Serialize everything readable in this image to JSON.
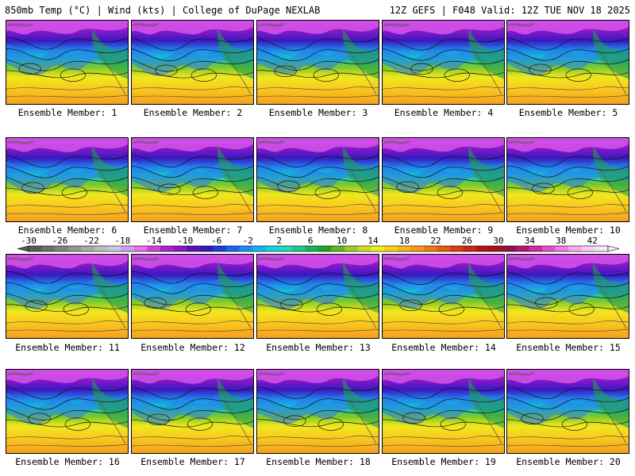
{
  "header": {
    "left": "850mb Temp (°C) | Wind (kts) | College of DuPage NEXLAB",
    "right": "12Z GEFS | F048 Valid: 12Z TUE NOV 18 2025"
  },
  "panel_label_prefix": "Ensemble Member: ",
  "members": [
    "1",
    "2",
    "3",
    "4",
    "5",
    "6",
    "7",
    "8",
    "9",
    "10",
    "11",
    "12",
    "13",
    "14",
    "15",
    "16",
    "17",
    "18",
    "19",
    "20"
  ],
  "colorbar": {
    "tick_labels": [
      "-30",
      "-26",
      "-22",
      "-18",
      "-14",
      "-10",
      "-6",
      "-2",
      "2",
      "6",
      "10",
      "14",
      "18",
      "22",
      "26",
      "30",
      "34",
      "38",
      "42"
    ],
    "colors": [
      "#5a5a5a",
      "#6e6e6e",
      "#828282",
      "#969696",
      "#aaaaaa",
      "#bebebe",
      "#c8c8e6",
      "#d2a0f0",
      "#e670f0",
      "#d040e0",
      "#b020d0",
      "#8a18c8",
      "#6010b8",
      "#3a18c0",
      "#1e3cd8",
      "#1e64f0",
      "#1e8cf0",
      "#14b4f0",
      "#14d2e6",
      "#1edcbe",
      "#1ec88c",
      "#14b45a",
      "#28a028",
      "#64b428",
      "#a0c828",
      "#d2dc28",
      "#f0f01e",
      "#fad21e",
      "#fab41e",
      "#fa961e",
      "#f07814",
      "#e65a14",
      "#dc3c14",
      "#c82814",
      "#b41414",
      "#a01414",
      "#8c1450",
      "#b41478",
      "#d228a0",
      "#e650c8",
      "#f07ce6",
      "#f5aaf0",
      "#faccf5",
      "#fae6fa"
    ]
  }
}
